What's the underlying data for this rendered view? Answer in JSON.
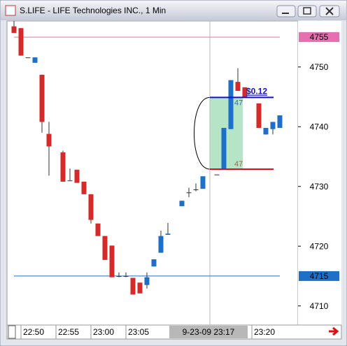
{
  "chart_data": {
    "type": "candlestick",
    "title": "S.LIFE - LIFE Technologies INC., 1 Min",
    "categories": [
      null,
      "22:50",
      null,
      null,
      null,
      null,
      "22:55",
      null,
      null,
      null,
      null,
      "23:00",
      null,
      null,
      null,
      null,
      "23:05",
      null,
      null,
      null,
      null,
      null,
      null,
      null,
      null,
      null,
      null,
      null,
      null,
      null,
      null,
      null,
      null,
      null,
      "23:20",
      null,
      null,
      null,
      null
    ],
    "open": [
      4756.8,
      4756.5,
      4751.6,
      4750.7,
      4748.7,
      4738.8,
      null,
      4735.7,
      4731,
      4732.8,
      4730.8,
      4728.7,
      4723.8,
      4721.7,
      4720.1,
      4715,
      4715,
      4714.7,
      4713.9,
      4713.5,
      4716.6,
      4718.9,
      4721.9,
      null,
      4726.7,
      4729,
      4729.5,
      4729.6,
      null,
      4732,
      4732.9,
      4739.6,
      4747.5,
      4746.6,
      null,
      4743.9,
      4738.7,
      4739.6,
      4739.8
    ],
    "high": [
      4757.7,
      4756.5,
      4751.6,
      4751.6,
      4748.7,
      4740.8,
      null,
      4736,
      4733,
      4732.8,
      4730.8,
      4728.7,
      4723.8,
      4721.7,
      4720.1,
      4715.6,
      4715.6,
      4714.7,
      4713.9,
      4715.6,
      4717.8,
      4722.6,
      4723.9,
      null,
      4727.6,
      4729.8,
      4730.5,
      4731.7,
      null,
      4732,
      4739.8,
      4747.8,
      4749.8,
      4746.6,
      null,
      4743.9,
      4739.8,
      4740.8,
      4741.9
    ],
    "low": [
      4755.7,
      4751.9,
      4751.6,
      4750.7,
      4739,
      4731.8,
      null,
      4730.8,
      4731,
      4730.6,
      4728.7,
      4723.8,
      4721.7,
      4717.7,
      4714.8,
      4714.8,
      4714.8,
      4711.9,
      4712.1,
      4712.9,
      4716.6,
      4718.9,
      4721.9,
      null,
      4726.7,
      4728.2,
      4729.2,
      4729.6,
      null,
      4732,
      4732.9,
      4739.6,
      4746,
      4744.9,
      null,
      4739.8,
      4738.7,
      4738.7,
      4739.8
    ],
    "close": [
      4755.7,
      4751.9,
      4751.6,
      4751.6,
      4740.8,
      4736.7,
      null,
      4730.8,
      4731,
      4730.6,
      4728.7,
      4724.4,
      4721.7,
      4717.7,
      4714.8,
      4715,
      4715,
      4711.9,
      4712.1,
      4714.8,
      4717.8,
      4721.7,
      4722.1,
      null,
      4727.6,
      4729,
      4729.5,
      4731.7,
      null,
      4732,
      4739.8,
      4747.8,
      4746,
      4744.9,
      null,
      4739.8,
      4739.8,
      4740.8,
      4741.9
    ],
    "up_color": "#1e6fc8",
    "down_color": "#d42a2a",
    "ylim": [
      4706.8,
      4757.7
    ],
    "yticks": [
      4710,
      4720,
      4730,
      4740,
      4750
    ],
    "hlines": [
      {
        "value": 4755,
        "color": "#e66fb0"
      },
      {
        "value": 4715,
        "color": "#1e6fc8"
      }
    ],
    "position": {
      "target": 4744.9,
      "stop": 4732.9,
      "profit_label": "$0.12",
      "target_label": "47",
      "stop_label": "47"
    },
    "cursor_label": "9-23-09 23:17"
  }
}
